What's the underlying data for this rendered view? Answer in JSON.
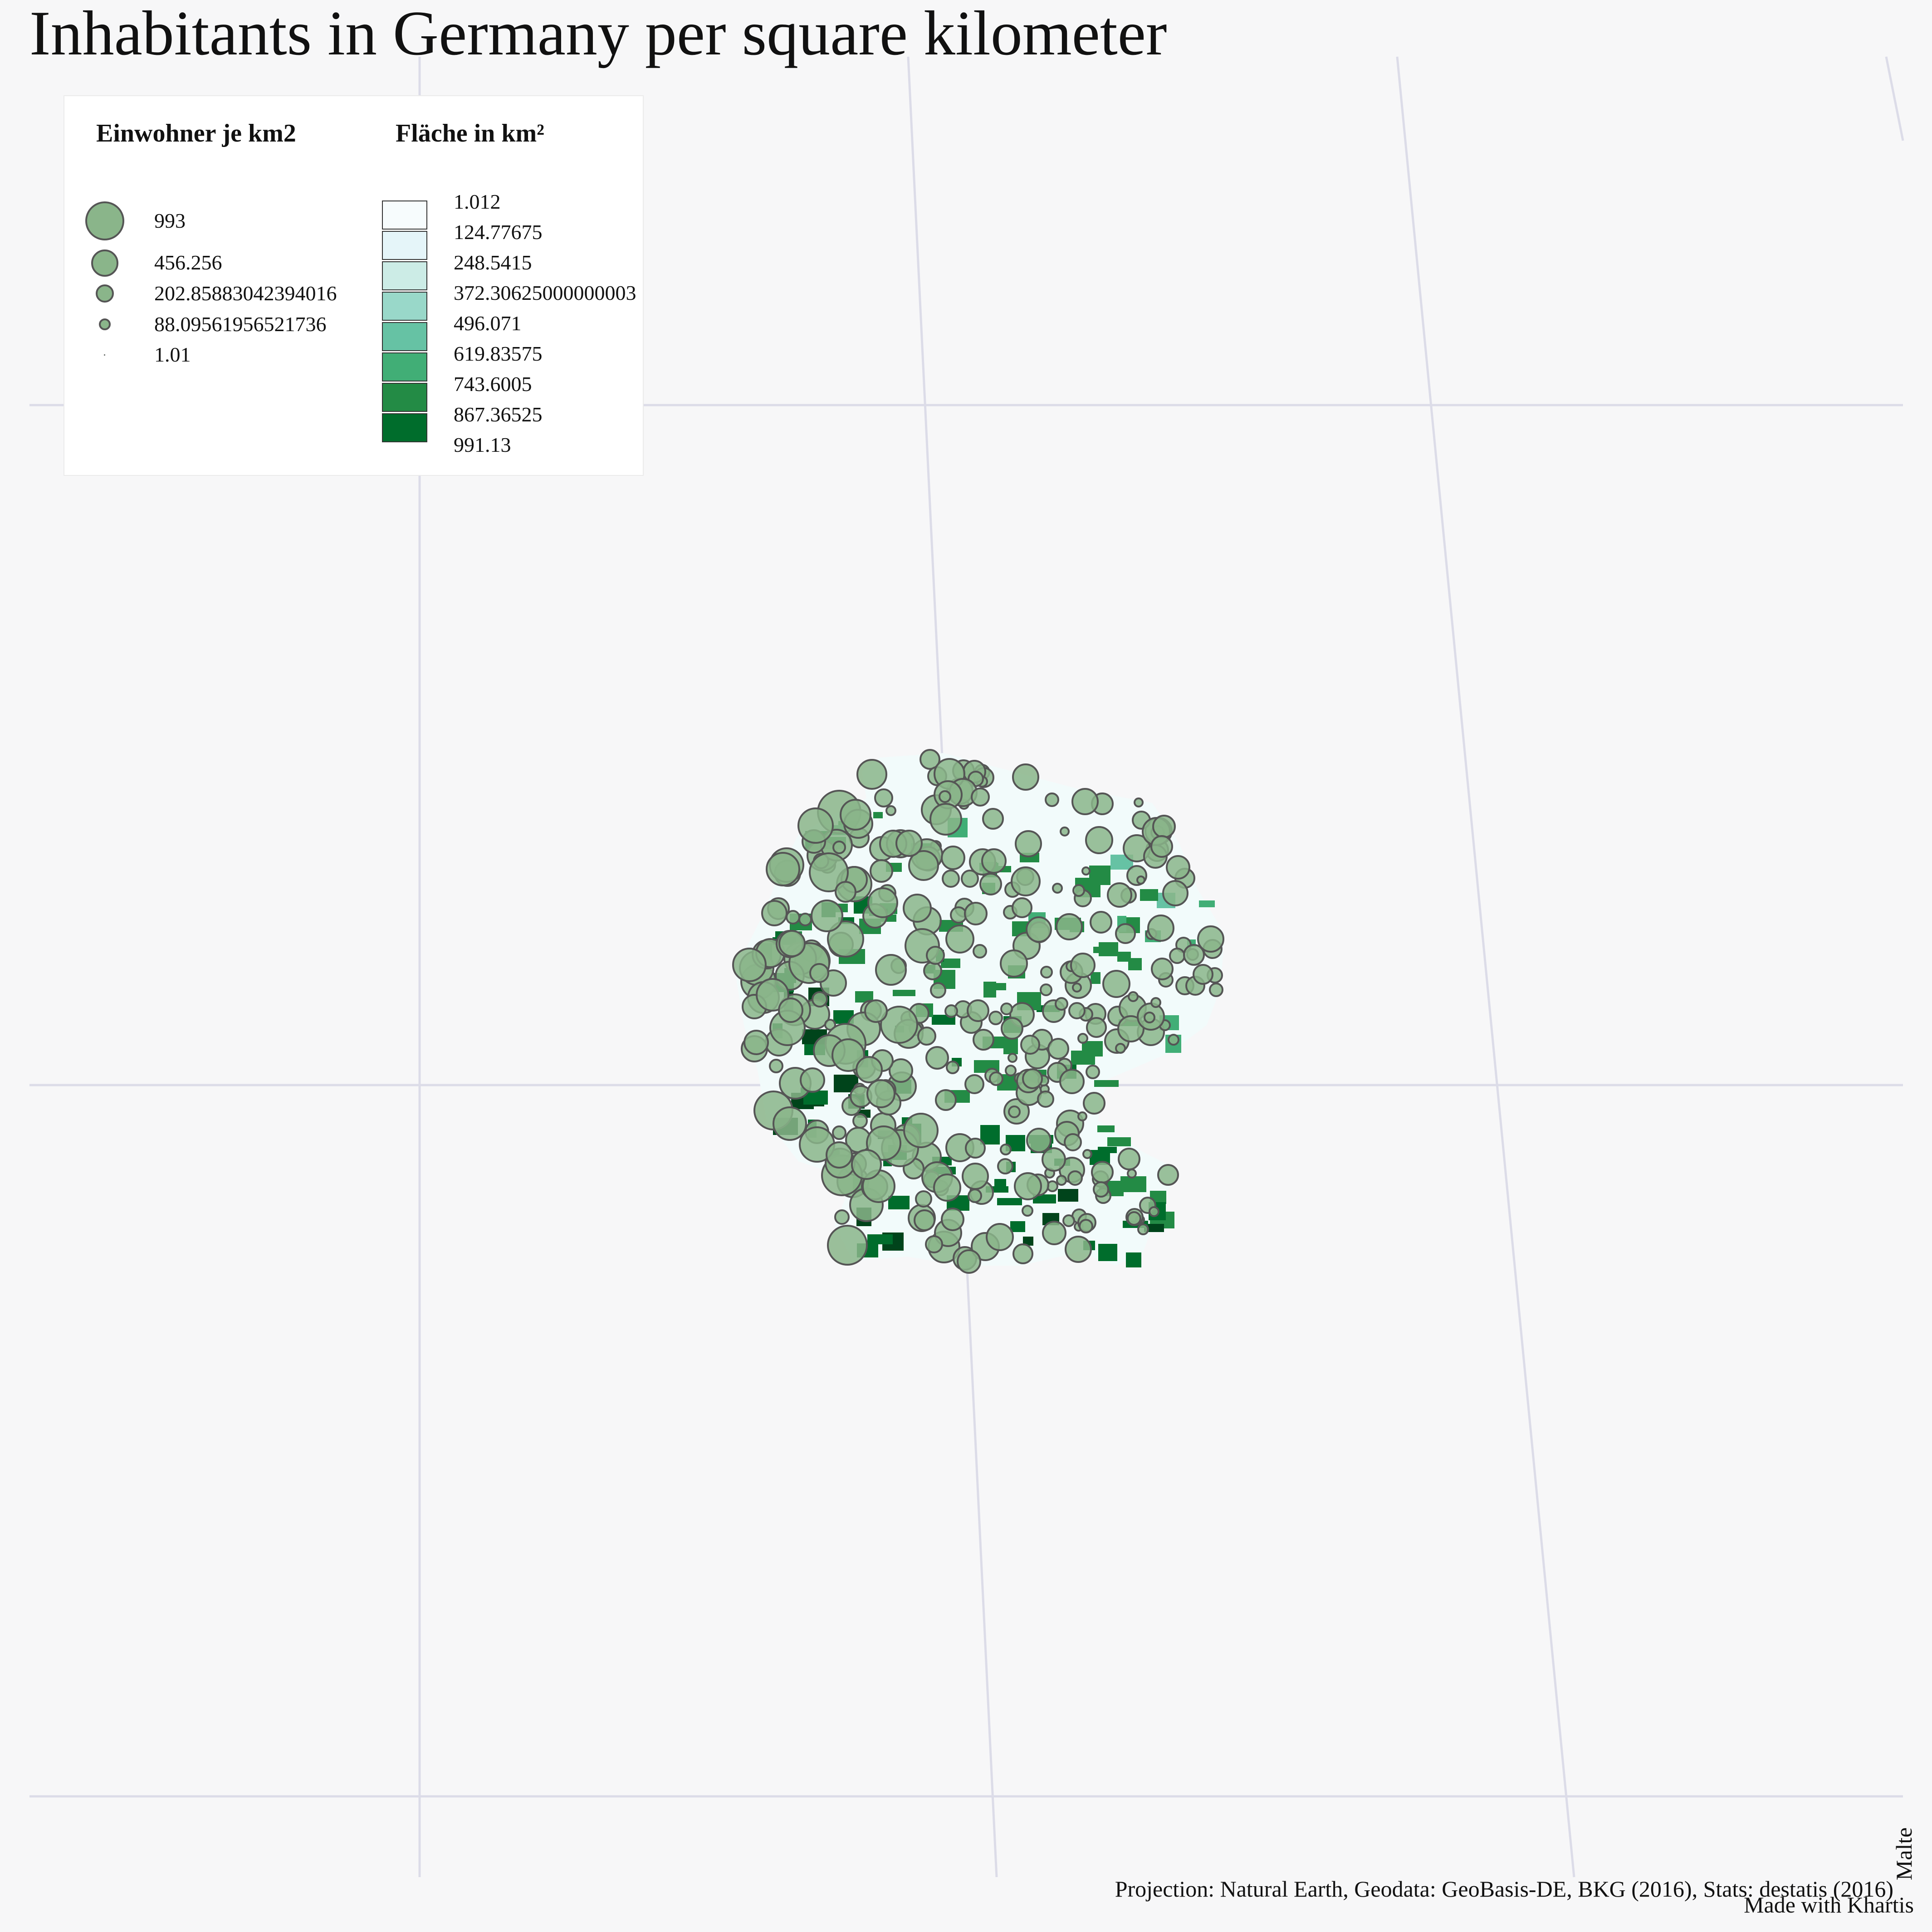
{
  "title": "Inhabitants in Germany per square kilometer",
  "legend": {
    "size": {
      "title": "Einwohner je km2",
      "entries": [
        "993",
        "456.256",
        "202.85883042394016",
        "88.09561956521736",
        "1.01"
      ]
    },
    "color": {
      "title": "Fläche in km²",
      "entries": [
        "1.012",
        "124.77675",
        "248.5415",
        "372.30625000000003",
        "496.071",
        "619.83575",
        "743.6005",
        "867.36525",
        "991.13"
      ],
      "colors": [
        "#f7fcfd",
        "#e5f5f9",
        "#ccece6",
        "#99d8c9",
        "#66c2a4",
        "#41ae76",
        "#238b45",
        "#006d2c",
        "#00441b"
      ]
    }
  },
  "credits": "Projection: Natural Earth, Geodata: GeoBasis-DE, BKG (2016), Stats: destatis (2016)",
  "author": "Malte",
  "made_with": "Made with Khartis",
  "symbol_color": "#8ab58a"
}
